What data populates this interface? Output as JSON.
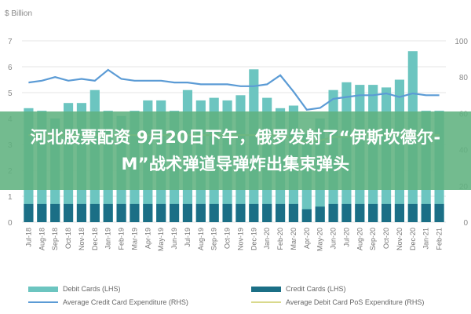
{
  "chart_data": {
    "type": "bar",
    "unit_label": "$ Billion",
    "categories": [
      "Jul-18",
      "Aug-18",
      "Sep-18",
      "Oct-18",
      "Nov-18",
      "Dec-18",
      "Jan-19",
      "Feb-19",
      "Mar-19",
      "Apr-19",
      "May-19",
      "Jun-19",
      "Jul-19",
      "Aug-19",
      "Sep-19",
      "Oct-19",
      "Nov-19",
      "Dec-19",
      "Jan-20",
      "Feb-20",
      "Mar-20",
      "Apr-20",
      "May-20",
      "Jun-20",
      "Jul-20",
      "Aug-20",
      "Sep-20",
      "Oct-20",
      "Nov-20",
      "Dec-20",
      "Jan-21",
      "Feb-21"
    ],
    "left_axis": {
      "min": 0,
      "max": 7,
      "ticks": [
        "0",
        "1",
        "2",
        "3",
        "4",
        "5",
        "6",
        "7"
      ]
    },
    "right_axis": {
      "min": 0,
      "max": 100,
      "ticks": [
        "0",
        "20",
        "40",
        "60",
        "80",
        "100"
      ]
    },
    "series": [
      {
        "name": "Debit Cards (LHS)",
        "axis": "left",
        "kind": "bar",
        "color": "#6cc5c0",
        "values": [
          4.4,
          4.3,
          4.0,
          4.6,
          4.6,
          5.1,
          4.3,
          4.1,
          4.3,
          4.7,
          4.7,
          4.3,
          5.1,
          4.7,
          4.8,
          4.7,
          4.9,
          5.9,
          4.8,
          4.4,
          4.5,
          3.4,
          4.0,
          5.1,
          5.4,
          5.3,
          5.3,
          5.2,
          5.5,
          6.6,
          4.3,
          4.3
        ]
      },
      {
        "name": "Credit Cards (LHS)",
        "axis": "left",
        "kind": "bar",
        "color": "#1b6f86",
        "values": [
          0.7,
          0.7,
          0.7,
          0.7,
          0.7,
          0.7,
          0.7,
          0.7,
          0.7,
          0.7,
          0.7,
          0.7,
          0.7,
          0.7,
          0.7,
          0.7,
          0.7,
          0.7,
          0.7,
          0.7,
          0.7,
          0.5,
          0.6,
          0.7,
          0.7,
          0.7,
          0.7,
          0.7,
          0.7,
          0.7,
          0.7,
          0.7
        ]
      },
      {
        "name": "Average Credit Card Expenditure (RHS)",
        "axis": "right",
        "kind": "line",
        "color": "#5b9bd5",
        "values": [
          77,
          78,
          80,
          78,
          79,
          78,
          84,
          79,
          78,
          78,
          78,
          77,
          77,
          76,
          76,
          76,
          75,
          75,
          76,
          81,
          72,
          62,
          63,
          68,
          69,
          70,
          70,
          71,
          69,
          71,
          70,
          70
        ]
      },
      {
        "name": "Average Debit Card PoS Expenditure (RHS)",
        "axis": "right",
        "kind": "line",
        "color": "#d9d98c",
        "values": [
          48,
          48,
          48,
          48,
          48,
          48,
          48,
          48,
          48,
          48,
          48,
          48,
          48,
          48,
          48,
          48,
          48,
          48,
          48,
          48,
          46,
          44,
          45,
          47,
          47,
          48,
          48,
          48,
          48,
          48,
          48,
          48
        ]
      }
    ],
    "grid": true,
    "legend_position": "bottom"
  },
  "overlay": {
    "headline": "河北股票配资 9月20日下午，俄罗发射了“伊斯坎德尔-M”战术弹道导弹炸出集束弹头"
  }
}
